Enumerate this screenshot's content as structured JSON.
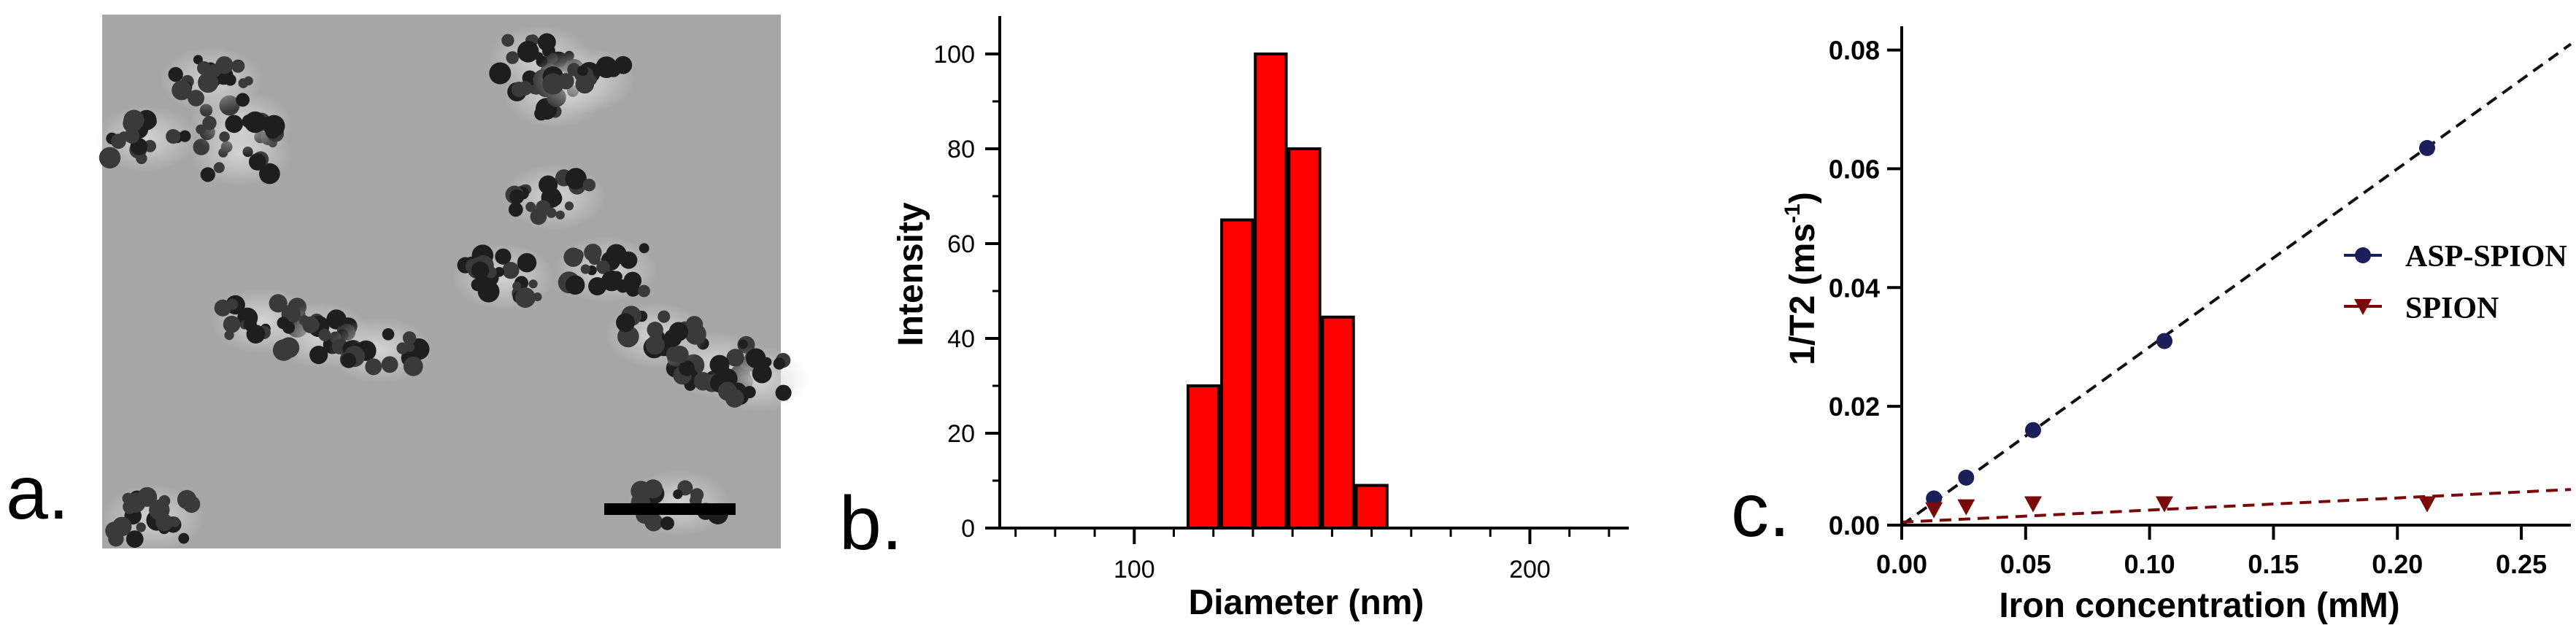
{
  "panels": {
    "a": {
      "letter": "a."
    },
    "b": {
      "letter": "b."
    },
    "c": {
      "letter": "c."
    }
  },
  "colors": {
    "bar_fill": "#ff0000",
    "asp_spion": "#1a1f5a",
    "spion": "#7a0a0a",
    "tem_background": "#a7a7a7"
  },
  "chart_data": [
    {
      "type": "bar",
      "panel": "b",
      "xlabel": "Diameter (nm)",
      "ylabel": "Intensity",
      "xlim": [
        66,
        225
      ],
      "ylim": [
        0,
        108
      ],
      "xticks": [
        100,
        200
      ],
      "yticks": [
        0,
        20,
        40,
        60,
        80,
        100
      ],
      "bar_width": 7.8,
      "x": [
        117.5,
        126,
        134.5,
        143,
        151.5,
        160
      ],
      "values": [
        30,
        65,
        100,
        80,
        44.5,
        9
      ]
    },
    {
      "type": "scatter",
      "panel": "c",
      "xlabel": "Iron concentration (mM)",
      "ylabel": "1/T2 (ms",
      "ylabel_sup": "-1",
      "ylabel_close": ")",
      "xlim": [
        0,
        0.27
      ],
      "ylim": [
        0,
        0.084
      ],
      "xticks": [
        0.0,
        0.05,
        0.1,
        0.15,
        0.2,
        0.25
      ],
      "xtick_labels": [
        "0.00",
        "0.05",
        "0.10",
        "0.15",
        "0.20",
        "0.25"
      ],
      "yticks": [
        0.0,
        0.02,
        0.04,
        0.06,
        0.08
      ],
      "ytick_labels": [
        "0.00",
        "0.02",
        "0.04",
        "0.06",
        "0.08"
      ],
      "legend_position": "right",
      "series": [
        {
          "name": "ASP-SPION",
          "marker": "circle",
          "x": [
            0.013,
            0.026,
            0.053,
            0.106,
            0.212
          ],
          "y": [
            0.0045,
            0.008,
            0.016,
            0.031,
            0.0635
          ],
          "fit": {
            "x": [
              0.0,
              0.27
            ],
            "y": [
              0.0,
              0.081
            ]
          }
        },
        {
          "name": "SPION",
          "marker": "triangle-down",
          "x": [
            0.013,
            0.026,
            0.053,
            0.106,
            0.212
          ],
          "y": [
            0.0025,
            0.003,
            0.0035,
            0.0035,
            0.0035
          ],
          "fit": {
            "x": [
              0.0,
              0.27
            ],
            "y": [
              0.0005,
              0.006
            ]
          }
        }
      ]
    }
  ]
}
